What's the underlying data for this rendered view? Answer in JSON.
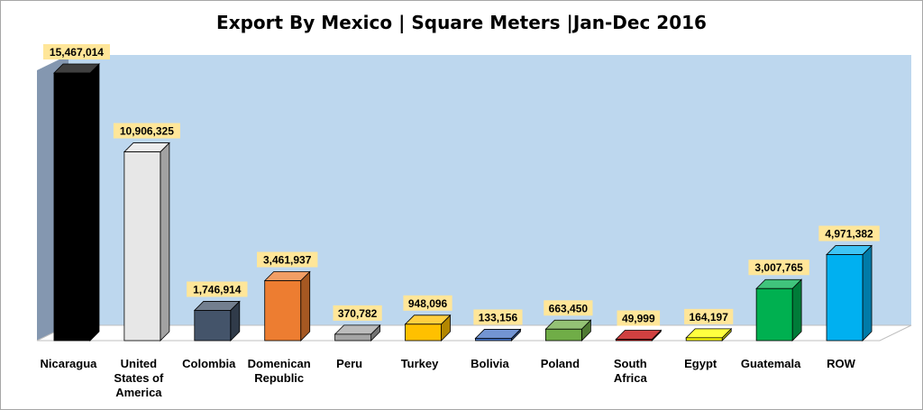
{
  "chart_data": {
    "type": "bar",
    "title": "Export By  Mexico | Square Meters |Jan-Dec 2016",
    "xlabel": "",
    "ylabel": "",
    "ylim": [
      0,
      15467014
    ],
    "grid": false,
    "legend": "none",
    "categories": [
      [
        "Nicaragua"
      ],
      [
        "United",
        "States of",
        "America"
      ],
      [
        "Colombia"
      ],
      [
        "Domenican",
        "Republic"
      ],
      [
        "Peru"
      ],
      [
        "Turkey"
      ],
      [
        "Bolivia"
      ],
      [
        "Poland"
      ],
      [
        "South",
        "Africa"
      ],
      [
        "Egypt"
      ],
      [
        "Guatemala"
      ],
      [
        "ROW"
      ]
    ],
    "values": [
      15467014,
      10906325,
      1746914,
      3461937,
      370782,
      948096,
      133156,
      663450,
      49999,
      164197,
      3007765,
      4971382
    ],
    "data_labels": [
      "15,467,014",
      "10,906,325",
      "1,746,914",
      "3,461,937",
      "370,782",
      "948,096",
      "133,156",
      "663,450",
      "49,999",
      "164,197",
      "3,007,765",
      "4,971,382"
    ],
    "colors": [
      "#000000",
      "#e7e7e7",
      "#44546a",
      "#ed7d31",
      "#a5a5a5",
      "#ffc000",
      "#4472c4",
      "#70ad47",
      "#c00000",
      "#ffff00",
      "#00b050",
      "#00b0f0"
    ],
    "plot_background": "#bdd7ee",
    "side_wall": "#8497b0",
    "floor": "#ffffff",
    "label_background": "#ffe699"
  }
}
